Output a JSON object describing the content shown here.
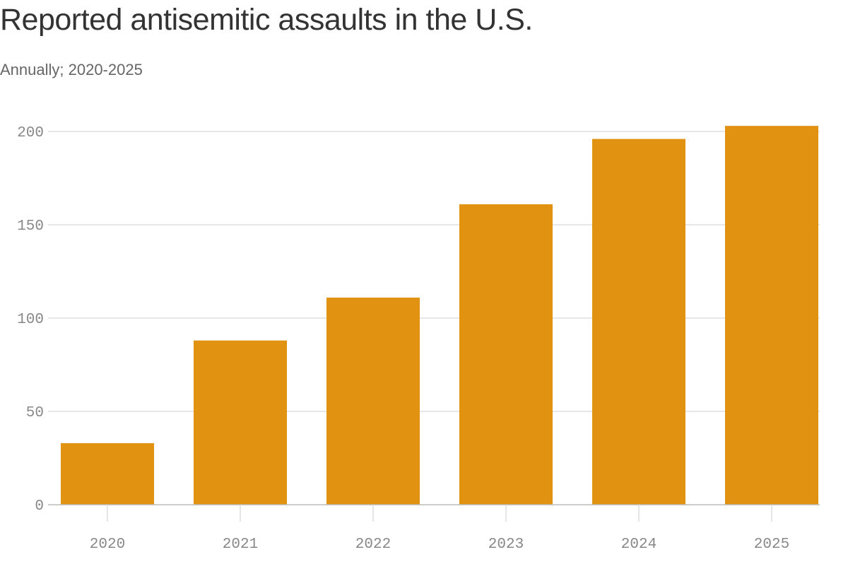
{
  "title": "Reported antisemitic assaults in the U.S.",
  "subtitle": "Annually; 2020-2025",
  "colors": {
    "bar": "#e09210",
    "grid": "#dddddd",
    "axis": "#bbbbbb",
    "tick_text": "#888888"
  },
  "chart_data": {
    "type": "bar",
    "title": "Reported antisemitic assaults in the U.S.",
    "subtitle": "Annually; 2020-2025",
    "categories": [
      "2020",
      "2021",
      "2022",
      "2023",
      "2024",
      "2025"
    ],
    "values": [
      33,
      88,
      111,
      161,
      196,
      203
    ],
    "xlabel": "",
    "ylabel": "",
    "ylim": [
      0,
      200
    ],
    "yticks": [
      0,
      50,
      100,
      150,
      200
    ],
    "grid": true,
    "legend": "none"
  }
}
